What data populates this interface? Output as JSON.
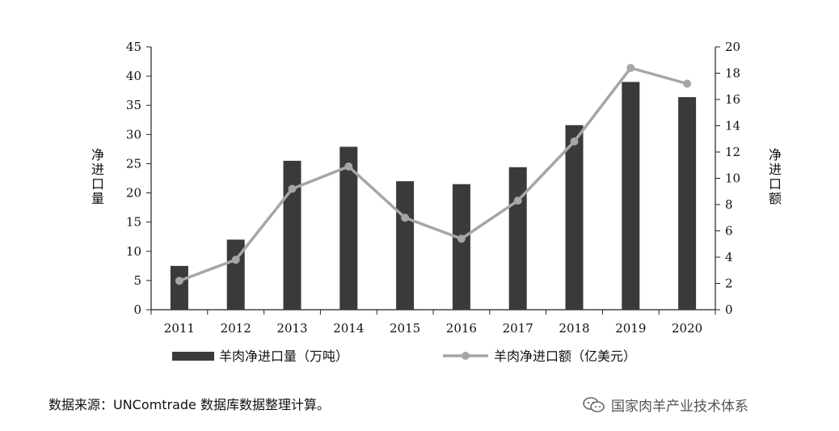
{
  "chart_data": {
    "type": "bar",
    "categories": [
      "2011",
      "2012",
      "2013",
      "2014",
      "2015",
      "2016",
      "2017",
      "2018",
      "2019",
      "2020"
    ],
    "series": [
      {
        "name": "羊肉净进口量（万吨）",
        "type": "bar",
        "axis": "left",
        "color": "#3a3a3a",
        "values": [
          7.5,
          12.0,
          25.5,
          27.9,
          22.0,
          21.5,
          24.4,
          31.6,
          39.0,
          36.4
        ]
      },
      {
        "name": "羊肉净进口额（亿美元）",
        "type": "line",
        "axis": "right",
        "color": "#a6a6a6",
        "values": [
          2.2,
          3.8,
          9.2,
          10.9,
          7.0,
          5.4,
          8.3,
          12.8,
          18.4,
          17.2
        ]
      }
    ],
    "y_left": {
      "label": "净进口量",
      "ylim": [
        0,
        45
      ],
      "ticks": [
        "0",
        "5",
        "10",
        "15",
        "20",
        "25",
        "30",
        "35",
        "40",
        "45"
      ]
    },
    "y_right": {
      "label": "净进口额",
      "ylim": [
        0,
        20
      ],
      "ticks": [
        "0",
        "2",
        "4",
        "6",
        "8",
        "10",
        "12",
        "14",
        "16",
        "18",
        "20"
      ]
    },
    "grid": false,
    "legend_position": "bottom"
  },
  "footer": {
    "source": "数据来源：UNComtrade 数据库数据整理计算。",
    "watermark": "国家肉羊产业技术体系",
    "watermark_icon": "wechat-icon"
  }
}
